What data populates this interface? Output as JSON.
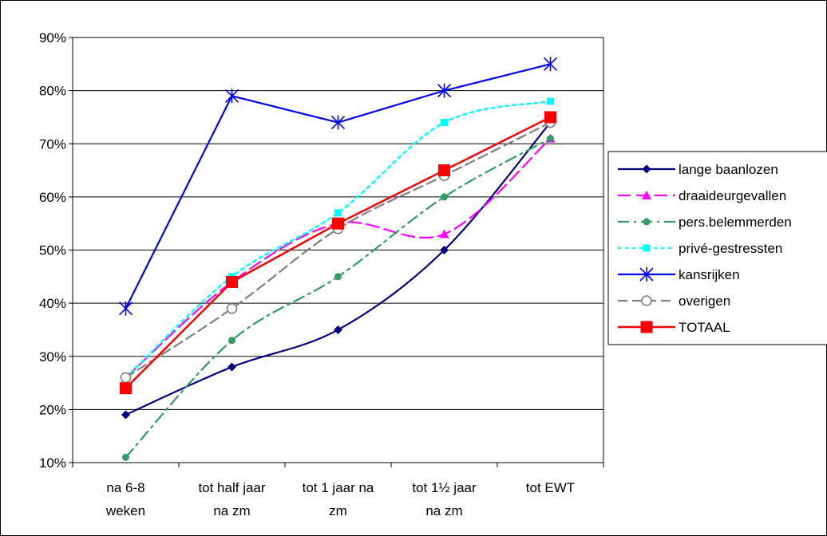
{
  "chart_data": {
    "type": "line",
    "categories": [
      [
        "na 6-8",
        "weken"
      ],
      [
        "tot half jaar",
        "na zm"
      ],
      [
        "tot 1 jaar na",
        "zm"
      ],
      [
        "tot 1½  jaar",
        "na zm"
      ],
      [
        "tot EWT"
      ]
    ],
    "y_ticks": [
      "10%",
      "20%",
      "30%",
      "40%",
      "50%",
      "60%",
      "70%",
      "80%",
      "90%"
    ],
    "ylim": [
      10,
      90
    ],
    "y_unit": "%",
    "grid": "horizontal",
    "legend_position": "right",
    "series": [
      {
        "name": "lange baanlozen",
        "values": [
          19,
          28,
          35,
          50,
          74
        ],
        "color": "#000080",
        "dash": "solid",
        "marker": "diamond",
        "smooth": true
      },
      {
        "name": "draaideurgevallen",
        "values": [
          26,
          44,
          55,
          53,
          71
        ],
        "color": "#ff00ff",
        "dash": "dash",
        "marker": "triangle",
        "smooth": true
      },
      {
        "name": "pers.belemmerden",
        "values": [
          11,
          33,
          45,
          60,
          71
        ],
        "color": "#339966",
        "dash": "dashdot",
        "marker": "circle",
        "smooth": true
      },
      {
        "name": "privé-gestressten",
        "values": [
          26,
          45,
          57,
          74,
          78
        ],
        "color": "#00ffff",
        "dash": "dot",
        "marker": "square",
        "smooth": true
      },
      {
        "name": "kansrijken",
        "values": [
          39,
          79,
          74,
          80,
          85
        ],
        "color": "#0000ff",
        "dash": "solid",
        "marker": "star",
        "smooth": false
      },
      {
        "name": "overigen",
        "values": [
          26,
          39,
          54,
          64,
          74
        ],
        "color": "#808080",
        "dash": "longdash",
        "marker": "open-circle",
        "smooth": true
      },
      {
        "name": "TOTAAL",
        "values": [
          24,
          44,
          55,
          65,
          75
        ],
        "color": "#ff0000",
        "dash": "solid",
        "marker": "big-square",
        "smooth": false
      }
    ]
  }
}
